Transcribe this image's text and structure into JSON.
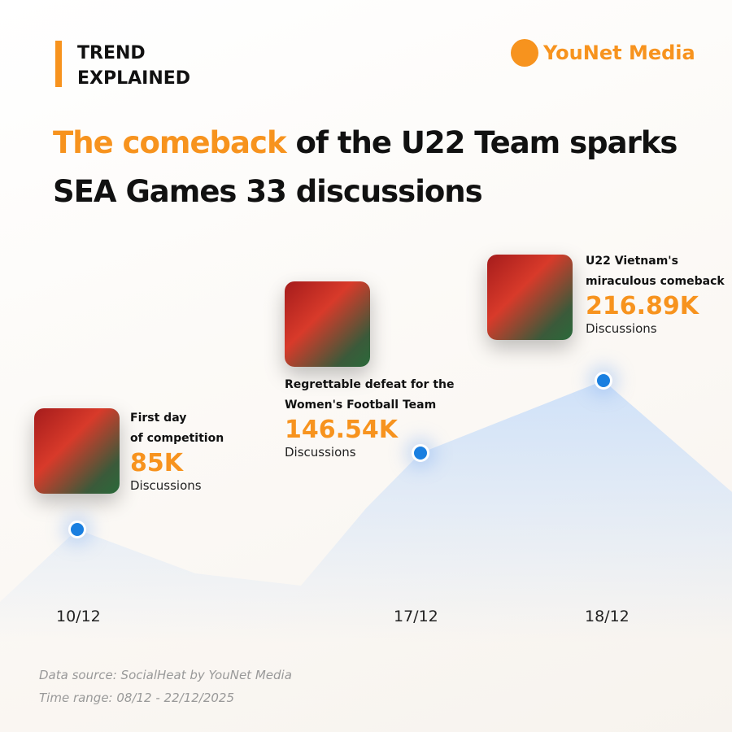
{
  "header": {
    "tag": [
      "TREND",
      "EXPLAINED"
    ],
    "brand": "YouNet Media",
    "title": [
      "The comeback",
      "of the U22 Team sparks",
      "SEA Games 33 discussions"
    ]
  },
  "events": [
    {
      "label": [
        "First day",
        "of competition"
      ],
      "value": "85K",
      "unit": "Discussions",
      "date": "10/12"
    },
    {
      "label": [
        "Regrettable defeat for the",
        "Women's Football Team"
      ],
      "value": "146.54K",
      "unit": "Discussions",
      "date": "17/12"
    },
    {
      "label": [
        "U22 Vietnam's",
        "miraculous comeback"
      ],
      "value": "216.89K",
      "unit": "Discussions",
      "date": "18/12"
    }
  ],
  "footer": {
    "source": "Data source: SocialHeat by YouNet Media",
    "range": "Time range: 08/12 - 22/12/2025"
  }
}
